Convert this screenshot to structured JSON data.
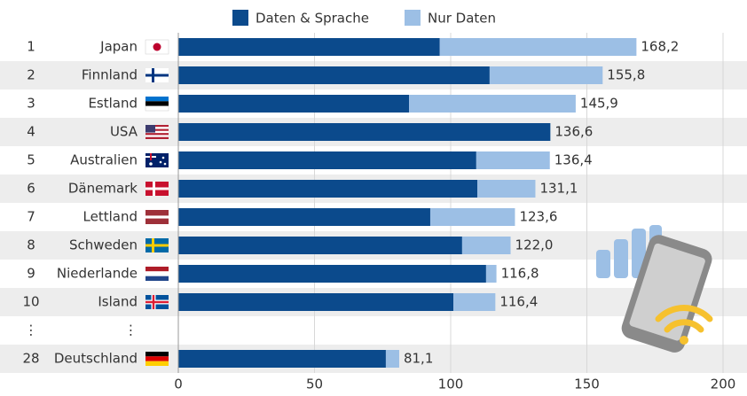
{
  "chart_data": {
    "type": "bar",
    "orientation": "horizontal",
    "stacked": true,
    "ranks": [
      "1",
      "2",
      "3",
      "4",
      "5",
      "6",
      "7",
      "8",
      "9",
      "10",
      "⋮",
      "28"
    ],
    "categories": [
      "Japan",
      "Finnland",
      "Estland",
      "USA",
      "Australien",
      "Dänemark",
      "Lettland",
      "Schweden",
      "Niederlande",
      "Island",
      "⋮",
      "Deutschland"
    ],
    "series": [
      {
        "name": "Daten & Sprache",
        "color": "#0b4a8c",
        "values": [
          96.0,
          114.3,
          84.7,
          136.6,
          109.4,
          109.8,
          92.5,
          104.2,
          113.0,
          101.0,
          null,
          76.2
        ]
      },
      {
        "name": "Nur Daten",
        "color": "#9cbfe5",
        "values": [
          72.2,
          41.5,
          61.2,
          0,
          27.0,
          21.3,
          31.1,
          17.8,
          3.8,
          15.4,
          null,
          4.9
        ]
      }
    ],
    "totals": [
      168.2,
      155.8,
      145.9,
      136.6,
      136.4,
      131.1,
      123.6,
      122.0,
      116.8,
      116.4,
      null,
      81.1
    ],
    "total_labels": [
      "168,2",
      "155,8",
      "145,9",
      "136,6",
      "136,4",
      "131,1",
      "123,6",
      "122,0",
      "116,8",
      "116,4",
      null,
      "81,1"
    ],
    "xlim": [
      0,
      200
    ],
    "xticks": [
      0,
      50,
      100,
      150,
      200
    ],
    "grid": true,
    "legend": "top"
  }
}
